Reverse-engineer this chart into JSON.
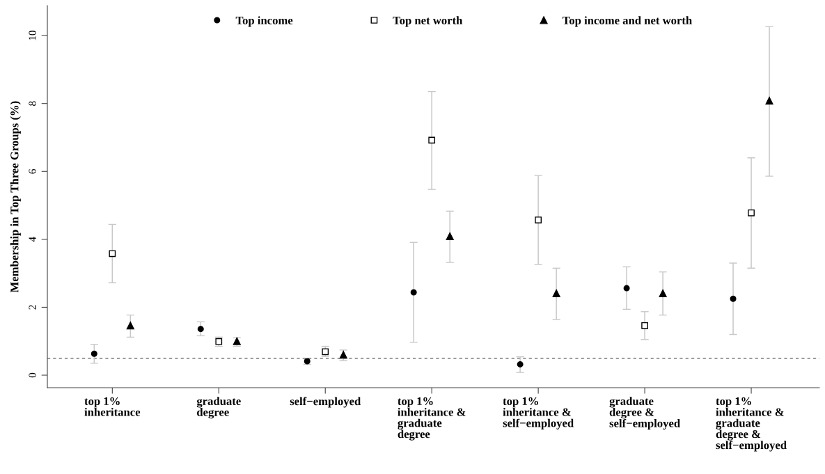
{
  "chart_data": {
    "type": "scatter",
    "ylabel": "Membership in Top Three Groups (%)",
    "categories": [
      "top 1%\ninheritance",
      "graduate\ndegree",
      "self−employed",
      "top 1%\ninheritance &\ngraduate\ndegree",
      "top 1%\ninheritance &\nself−employed",
      "graduate\ndegree &\nself−employed",
      "top 1%\ninheritance &\ngraduate\ndegree &\nself−employed"
    ],
    "series": [
      {
        "name": "Top income",
        "color": "#000000",
        "marker": "circle",
        "values": [
          0.63,
          1.36,
          0.41,
          2.44,
          0.32,
          2.56,
          2.25
        ],
        "errors": [
          [
            0.35,
            0.91
          ],
          [
            1.16,
            1.57
          ],
          [
            0.32,
            0.48
          ],
          [
            0.97,
            3.91
          ],
          [
            0.08,
            0.54
          ],
          [
            1.94,
            3.19
          ],
          [
            1.2,
            3.3
          ]
        ]
      },
      {
        "name": "Top net worth",
        "color": "#000000",
        "marker": "square",
        "values": [
          3.58,
          0.99,
          0.69,
          6.92,
          4.57,
          1.46,
          4.78
        ],
        "errors": [
          [
            2.72,
            4.44
          ],
          [
            0.85,
            1.12
          ],
          [
            0.55,
            0.85
          ],
          [
            5.47,
            8.35
          ],
          [
            3.26,
            5.88
          ],
          [
            1.05,
            1.87
          ],
          [
            3.15,
            6.4
          ]
        ]
      },
      {
        "name": "Top income and net worth",
        "color": "#000000",
        "marker": "triangle",
        "values": [
          1.46,
          1.0,
          0.6,
          4.09,
          2.41,
          2.41,
          8.08
        ],
        "errors": [
          [
            1.12,
            1.77
          ],
          [
            0.85,
            1.1
          ],
          [
            0.43,
            0.74
          ],
          [
            3.32,
            4.83
          ],
          [
            1.64,
            3.15
          ],
          [
            1.77,
            3.04
          ],
          [
            5.86,
            10.26
          ]
        ]
      }
    ],
    "ylim": [
      -0.37,
      10.88
    ],
    "yticks": [
      0,
      2,
      4,
      6,
      8,
      10
    ],
    "ref_lines": [
      {
        "axis": "y",
        "value": 0.5,
        "color": "#555555",
        "line_style": "dashed"
      }
    ],
    "legend": "top",
    "grid": false
  }
}
